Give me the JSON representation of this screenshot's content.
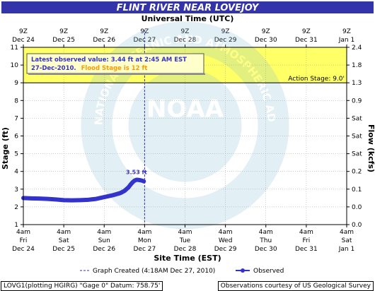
{
  "chart_data": {
    "type": "line",
    "title": "FLINT RIVER NEAR LOVEJOY",
    "top_axis_title": "Universal Time (UTC)",
    "bottom_axis_title": "Site Time (EST)",
    "left_axis_title": "Stage (ft)",
    "right_axis_title": "Flow (kcfs)",
    "ylim": [
      1,
      11
    ],
    "y_ticks": [
      "1",
      "2",
      "3",
      "4",
      "5",
      "6",
      "7",
      "8",
      "9",
      "10",
      "11"
    ],
    "right_ticks": [
      {
        "label": "0.0",
        "stage": 1
      },
      {
        "label": "0.0",
        "stage": 2
      },
      {
        "label": "0.1",
        "stage": 3
      },
      {
        "label": "0.2",
        "stage": 4
      },
      {
        "label": "Sat",
        "stage": 5
      },
      {
        "label": "Sat",
        "stage": 6
      },
      {
        "label": "Sat",
        "stage": 7
      },
      {
        "label": "0.9",
        "stage": 8
      },
      {
        "label": "1.3",
        "stage": 9
      },
      {
        "label": "1.8",
        "stage": 10
      },
      {
        "label": "2.4",
        "stage": 11
      }
    ],
    "top_ticks": [
      {
        "l1": "9Z",
        "l2": "Dec 24"
      },
      {
        "l1": "9Z",
        "l2": "Dec 25"
      },
      {
        "l1": "9Z",
        "l2": "Dec 26"
      },
      {
        "l1": "9Z",
        "l2": "Dec 27"
      },
      {
        "l1": "9Z",
        "l2": "Dec 28"
      },
      {
        "l1": "9Z",
        "l2": "Dec 29"
      },
      {
        "l1": "9Z",
        "l2": "Dec 30"
      },
      {
        "l1": "9Z",
        "l2": "Dec 31"
      },
      {
        "l1": "9Z",
        "l2": "Jan 1"
      }
    ],
    "bottom_ticks": [
      {
        "l1": "4am",
        "l2": "Fri",
        "l3": "Dec 24"
      },
      {
        "l1": "4am",
        "l2": "Sat",
        "l3": "Dec 25"
      },
      {
        "l1": "4am",
        "l2": "Sun",
        "l3": "Dec 26"
      },
      {
        "l1": "4am",
        "l2": "Mon",
        "l3": "Dec 27"
      },
      {
        "l1": "4am",
        "l2": "Tue",
        "l3": "Dec 28"
      },
      {
        "l1": "4am",
        "l2": "Wed",
        "l3": "Dec 29"
      },
      {
        "l1": "4am",
        "l2": "Thu",
        "l3": "Dec 30"
      },
      {
        "l1": "4am",
        "l2": "Fri",
        "l3": "Dec 31"
      },
      {
        "l1": "4am",
        "l2": "Sat",
        "l3": "Jan 1"
      }
    ],
    "x_range_days": [
      0,
      8
    ],
    "series": [
      {
        "name": "Observed",
        "color": "#3333cc",
        "x": [
          0.0,
          0.2,
          0.4,
          0.6,
          0.8,
          1.0,
          1.2,
          1.4,
          1.6,
          1.8,
          2.0,
          2.2,
          2.4,
          2.5,
          2.6,
          2.65,
          2.7,
          2.75,
          2.8,
          2.85,
          2.9,
          2.95,
          2.98
        ],
        "y": [
          2.5,
          2.48,
          2.47,
          2.45,
          2.42,
          2.38,
          2.37,
          2.38,
          2.4,
          2.45,
          2.55,
          2.65,
          2.78,
          2.9,
          3.1,
          3.25,
          3.38,
          3.48,
          3.53,
          3.52,
          3.5,
          3.47,
          3.44
        ]
      }
    ],
    "peak_label": {
      "text": "3.53 ft",
      "x": 2.8,
      "y": 3.53,
      "color": "#3333cc"
    },
    "flood_stage": 12,
    "flood_zone_color": "#ffff66",
    "action_stage": {
      "value": 9,
      "label": "Action Stage: 9.0'"
    },
    "graph_created_x": 3.0,
    "latest_box": {
      "line1": "Latest observed value: 3.44 ft at 2:45 AM EST",
      "line2_a": "27-Dec-2010.",
      "line2_b": "Flood Stage is 12 ft",
      "text_color": "#3333cc",
      "flood_text_color": "#ff9900"
    },
    "legend": {
      "graph_created": "Graph Created (4:18AM Dec 27, 2010)",
      "observed": "Observed"
    },
    "grid": true
  },
  "footer": {
    "left": "LOVG1(plotting HGIRG) \"Gage 0\" Datum: 758.75'",
    "right": "Observations courtesy of US Geological Survey"
  },
  "colors": {
    "title_bg": "#3333aa",
    "title_fg": "#ffffff",
    "grid": "#999999",
    "action_line": "#000000",
    "created_line": "#3333aa"
  },
  "watermark": {
    "text": "NOAA",
    "ring_text": "NATIONAL OCEANIC AND ATMOSPHERIC ADMINISTRATION"
  }
}
